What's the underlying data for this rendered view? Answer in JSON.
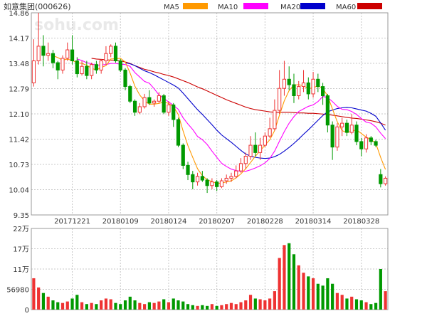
{
  "header": {
    "title": "如意集团(000626)",
    "legend": [
      {
        "label": "MA5",
        "color": "#ff9900"
      },
      {
        "label": "MA10",
        "color": "#ff00ff"
      },
      {
        "label": "MA20",
        "color": "#0000cc"
      },
      {
        "label": "MA60",
        "color": "#cc0000"
      }
    ]
  },
  "watermark": "sohu.com",
  "colors": {
    "up": "#ee3333",
    "down": "#009900",
    "grid": "#c8c8c8",
    "frame": "#999999",
    "text": "#333333"
  },
  "chart_data": [
    {
      "type": "candlestick",
      "title": "",
      "ylim": [
        9.35,
        14.86
      ],
      "yticks": [
        "14.86",
        "14.17",
        "13.48",
        "12.79",
        "12.10",
        "11.42",
        "10.73",
        "10.04",
        "9.35"
      ],
      "xtick_labels": [
        {
          "index": 8,
          "label": "20171221"
        },
        {
          "index": 18,
          "label": "20180109"
        },
        {
          "index": 28,
          "label": "20180124"
        },
        {
          "index": 38,
          "label": "20180207"
        },
        {
          "index": 48,
          "label": "20180228"
        },
        {
          "index": 58,
          "label": "20180314"
        },
        {
          "index": 68,
          "label": "20180328"
        }
      ],
      "bars": [
        [
          12.95,
          13.55,
          14.14,
          12.85
        ],
        [
          13.55,
          13.95,
          14.86,
          13.45
        ],
        [
          13.95,
          13.7,
          14.25,
          13.4
        ],
        [
          13.7,
          13.75,
          14.05,
          13.55
        ],
        [
          13.75,
          13.5,
          13.85,
          13.35
        ],
        [
          13.5,
          13.3,
          13.55,
          13.05
        ],
        [
          13.3,
          13.62,
          13.7,
          13.2
        ],
        [
          13.62,
          13.85,
          14.05,
          13.55
        ],
        [
          13.85,
          13.55,
          14.25,
          13.45
        ],
        [
          13.55,
          13.2,
          13.65,
          13.1
        ],
        [
          13.2,
          13.4,
          13.55,
          13.15
        ],
        [
          13.4,
          13.15,
          13.55,
          13.05
        ],
        [
          13.15,
          13.45,
          13.5,
          13.05
        ],
        [
          13.45,
          13.3,
          13.55,
          13.2
        ],
        [
          13.3,
          13.55,
          13.6,
          13.2
        ],
        [
          13.55,
          13.75,
          13.95,
          13.45
        ],
        [
          13.75,
          13.95,
          14.0,
          13.65
        ],
        [
          13.95,
          13.55,
          14.05,
          13.5
        ],
        [
          13.55,
          13.3,
          13.6,
          13.25
        ],
        [
          13.3,
          12.85,
          13.35,
          12.75
        ],
        [
          12.85,
          12.45,
          12.9,
          12.4
        ],
        [
          12.45,
          12.15,
          12.5,
          12.05
        ],
        [
          12.15,
          12.3,
          12.4,
          12.1
        ],
        [
          12.3,
          12.55,
          12.65,
          12.25
        ],
        [
          12.55,
          12.4,
          12.75,
          12.35
        ],
        [
          12.4,
          12.45,
          12.5,
          12.3
        ],
        [
          12.45,
          12.6,
          12.7,
          12.4
        ],
        [
          12.6,
          12.15,
          12.65,
          12.1
        ],
        [
          12.15,
          12.35,
          12.45,
          12.05
        ],
        [
          12.35,
          11.95,
          12.4,
          11.75
        ],
        [
          11.95,
          11.25,
          12.0,
          11.2
        ],
        [
          11.25,
          10.7,
          11.3,
          10.6
        ],
        [
          10.7,
          10.45,
          10.8,
          10.3
        ],
        [
          10.45,
          10.25,
          10.55,
          10.05
        ],
        [
          10.25,
          10.4,
          10.5,
          10.15
        ],
        [
          10.4,
          10.3,
          10.55,
          10.25
        ],
        [
          10.3,
          10.15,
          10.35,
          9.95
        ],
        [
          10.15,
          10.25,
          10.35,
          10.05
        ],
        [
          10.25,
          10.12,
          10.3,
          10.0
        ],
        [
          10.12,
          10.28,
          10.35,
          10.08
        ],
        [
          10.28,
          10.35,
          10.45,
          10.2
        ],
        [
          10.35,
          10.4,
          10.5,
          10.25
        ],
        [
          10.4,
          10.55,
          10.7,
          10.35
        ],
        [
          10.55,
          10.75,
          10.9,
          10.5
        ],
        [
          10.75,
          10.95,
          11.05,
          10.6
        ],
        [
          10.95,
          11.25,
          11.5,
          10.85
        ],
        [
          11.25,
          11.05,
          11.6,
          10.95
        ],
        [
          11.05,
          11.25,
          11.45,
          10.85
        ],
        [
          11.25,
          11.5,
          11.6,
          11.2
        ],
        [
          11.5,
          11.7,
          12.0,
          11.45
        ],
        [
          11.7,
          12.2,
          12.5,
          11.65
        ],
        [
          12.2,
          12.8,
          13.3,
          12.1
        ],
        [
          12.8,
          13.05,
          13.55,
          12.6
        ],
        [
          13.05,
          12.9,
          13.4,
          12.75
        ],
        [
          12.9,
          12.6,
          13.2,
          12.4
        ],
        [
          12.6,
          12.85,
          13.0,
          12.5
        ],
        [
          12.85,
          12.95,
          13.3,
          12.7
        ],
        [
          12.95,
          12.65,
          13.1,
          12.5
        ],
        [
          12.65,
          13.05,
          13.25,
          12.55
        ],
        [
          13.05,
          12.85,
          13.2,
          12.7
        ],
        [
          12.85,
          12.6,
          12.95,
          12.35
        ],
        [
          12.6,
          11.8,
          12.65,
          11.6
        ],
        [
          11.8,
          11.2,
          11.9,
          10.85
        ],
        [
          11.2,
          11.75,
          11.85,
          11.1
        ],
        [
          11.75,
          11.85,
          12.0,
          11.5
        ],
        [
          11.85,
          11.6,
          11.95,
          11.5
        ],
        [
          11.6,
          11.8,
          12.1,
          11.55
        ],
        [
          11.8,
          11.35,
          11.9,
          11.25
        ],
        [
          11.35,
          11.15,
          11.45,
          10.95
        ],
        [
          11.15,
          11.45,
          11.55,
          11.05
        ],
        [
          11.45,
          11.35,
          11.5,
          11.25
        ],
        [
          11.35,
          11.25,
          11.4,
          11.2
        ],
        [
          10.45,
          10.2,
          10.6,
          10.1
        ],
        [
          10.2,
          10.35,
          10.4,
          10.15
        ]
      ],
      "ma5": [
        null,
        null,
        null,
        null,
        13.69,
        13.64,
        13.57,
        13.6,
        13.56,
        13.5,
        13.48,
        13.43,
        13.35,
        13.3,
        13.37,
        13.42,
        13.6,
        13.61,
        13.62,
        13.52,
        13.22,
        12.86,
        12.62,
        12.46,
        12.37,
        12.37,
        12.39,
        12.43,
        12.39,
        12.3,
        12.09,
        11.64,
        11.24,
        10.92,
        10.61,
        10.42,
        10.31,
        10.26,
        10.21,
        10.22,
        10.25,
        10.28,
        10.36,
        10.47,
        10.61,
        10.78,
        10.95,
        11.1,
        11.25,
        11.4,
        11.65,
        12.07,
        12.46,
        12.74,
        12.89,
        12.9,
        12.87,
        12.79,
        12.82,
        12.87,
        12.8,
        12.59,
        12.24,
        11.89,
        11.65,
        11.59,
        11.64,
        11.67,
        11.57,
        11.47,
        11.41,
        11.3,
        10.92,
        10.59
      ],
      "ma10": [
        null,
        null,
        null,
        null,
        null,
        null,
        null,
        null,
        null,
        13.6,
        13.56,
        13.5,
        13.47,
        13.43,
        13.44,
        13.45,
        13.48,
        13.48,
        13.46,
        13.45,
        13.4,
        13.23,
        13.11,
        12.99,
        12.94,
        12.79,
        12.62,
        12.53,
        12.43,
        12.34,
        12.23,
        12.0,
        11.83,
        11.68,
        11.49,
        11.4,
        11.27,
        11.09,
        10.92,
        10.76,
        10.67,
        10.6,
        10.56,
        10.54,
        10.54,
        10.58,
        10.63,
        10.69,
        10.77,
        10.89,
        11.09,
        11.36,
        11.62,
        11.85,
        12.03,
        12.17,
        12.24,
        12.31,
        12.35,
        12.44,
        12.58,
        12.55,
        12.44,
        12.31,
        12.23,
        12.22,
        12.17,
        12.09,
        11.98,
        11.88,
        11.85,
        11.75,
        11.58,
        11.43
      ],
      "ma20": [
        null,
        null,
        null,
        null,
        null,
        null,
        null,
        null,
        null,
        null,
        null,
        null,
        null,
        null,
        null,
        null,
        null,
        null,
        null,
        13.5,
        13.47,
        13.42,
        13.35,
        13.28,
        13.23,
        13.17,
        13.1,
        13.03,
        12.96,
        12.89,
        12.81,
        12.67,
        12.52,
        12.37,
        12.22,
        12.09,
        11.95,
        11.81,
        11.66,
        11.53,
        11.43,
        11.33,
        11.22,
        11.11,
        11.01,
        10.95,
        10.92,
        10.9,
        10.89,
        10.9,
        10.94,
        11.0,
        11.09,
        11.19,
        11.3,
        11.42,
        11.55,
        11.67,
        11.8,
        11.93,
        12.06,
        12.16,
        12.21,
        12.25,
        12.27,
        12.28,
        12.27,
        12.24,
        12.21,
        12.18,
        12.12,
        12.04,
        11.86,
        11.66
      ],
      "ma60": [
        null,
        null,
        null,
        null,
        null,
        null,
        null,
        null,
        null,
        null,
        null,
        null,
        13.62,
        13.6,
        13.59,
        13.58,
        13.57,
        13.56,
        13.55,
        13.52,
        13.48,
        13.42,
        13.37,
        13.32,
        13.29,
        13.25,
        13.22,
        13.18,
        13.15,
        13.11,
        13.06,
        13.01,
        12.96,
        12.9,
        12.84,
        12.79,
        12.73,
        12.67,
        12.61,
        12.55,
        12.49,
        12.44,
        12.39,
        12.34,
        12.29,
        12.25,
        12.22,
        12.2,
        12.18,
        12.16,
        12.15,
        12.15,
        12.15,
        12.15,
        12.14,
        12.13,
        12.13,
        12.12,
        12.12,
        12.11,
        12.1,
        12.09,
        12.07,
        12.05,
        12.03,
        12.01,
        11.99,
        11.98,
        11.96,
        11.94,
        11.92,
        11.89,
        11.85,
        11.8
      ]
    },
    {
      "type": "bar",
      "title": "",
      "ylim": [
        0,
        220000
      ],
      "yticks": [
        "22万",
        "17万",
        "11万",
        "56980",
        "0"
      ],
      "values": [
        85000,
        60000,
        45000,
        35000,
        25000,
        20000,
        18000,
        22000,
        30000,
        40000,
        20000,
        15000,
        18000,
        15000,
        25000,
        30000,
        28000,
        18000,
        15000,
        25000,
        35000,
        25000,
        18000,
        15000,
        20000,
        18000,
        22000,
        28000,
        20000,
        30000,
        25000,
        22000,
        15000,
        12000,
        10000,
        12000,
        10000,
        15000,
        10000,
        12000,
        15000,
        18000,
        15000,
        20000,
        25000,
        40000,
        30000,
        28000,
        25000,
        30000,
        50000,
        140000,
        175000,
        180000,
        150000,
        120000,
        100000,
        90000,
        85000,
        70000,
        65000,
        85000,
        70000,
        45000,
        40000,
        30000,
        35000,
        28000,
        25000,
        20000,
        15000,
        18000,
        110000,
        50000
      ]
    }
  ]
}
